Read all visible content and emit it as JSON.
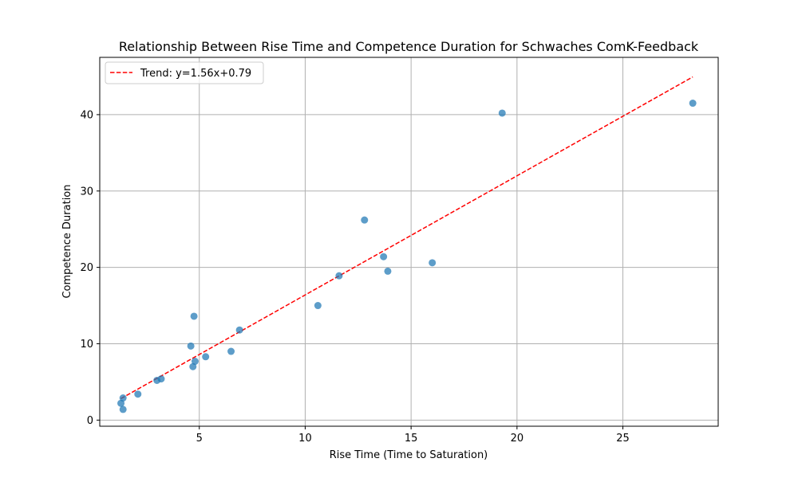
{
  "chart_data": {
    "type": "scatter",
    "title": "Relationship Between Rise Time and Competence Duration for Schwaches ComK-Feedback",
    "xlabel": "Rise Time (Time to Saturation)",
    "ylabel": "Competence Duration",
    "xlim": [
      0.3,
      29.5
    ],
    "ylim": [
      -0.8,
      47.5
    ],
    "xticks": [
      5,
      10,
      15,
      20,
      25
    ],
    "yticks": [
      0,
      10,
      20,
      30,
      40
    ],
    "grid": true,
    "legend_position": "top-left",
    "series": [
      {
        "kind": "scatter",
        "color": "#1f77b4",
        "points": [
          {
            "x": 1.3,
            "y": 2.2
          },
          {
            "x": 1.4,
            "y": 1.4
          },
          {
            "x": 1.4,
            "y": 2.9
          },
          {
            "x": 2.1,
            "y": 3.4
          },
          {
            "x": 3.0,
            "y": 5.2
          },
          {
            "x": 3.2,
            "y": 5.4
          },
          {
            "x": 4.6,
            "y": 9.7
          },
          {
            "x": 4.7,
            "y": 7.0
          },
          {
            "x": 4.8,
            "y": 7.7
          },
          {
            "x": 4.75,
            "y": 13.6
          },
          {
            "x": 5.3,
            "y": 8.3
          },
          {
            "x": 6.5,
            "y": 9.0
          },
          {
            "x": 6.9,
            "y": 11.8
          },
          {
            "x": 10.6,
            "y": 15.0
          },
          {
            "x": 11.6,
            "y": 18.9
          },
          {
            "x": 12.8,
            "y": 26.2
          },
          {
            "x": 13.7,
            "y": 21.4
          },
          {
            "x": 13.9,
            "y": 19.5
          },
          {
            "x": 16.0,
            "y": 20.6
          },
          {
            "x": 19.3,
            "y": 40.2
          },
          {
            "x": 28.3,
            "y": 41.5
          }
        ]
      },
      {
        "kind": "trend",
        "name": "Trend: y=1.56x+0.79",
        "color": "#ff0000",
        "slope": 1.56,
        "intercept": 0.79,
        "x_range": [
          1.3,
          28.3
        ]
      }
    ]
  }
}
